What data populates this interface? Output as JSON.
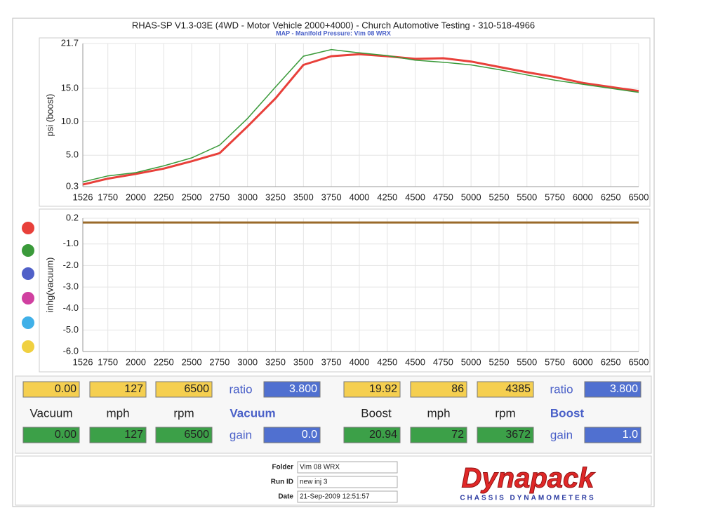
{
  "chart_data": [
    {
      "type": "line",
      "title": "RHAS-SP V1.3-03E  (4WD - Motor Vehicle 2000+4000) - Church Automotive Testing - 310-518-4966",
      "subtitle": "MAP - Manifold Pressure: Vim 08 WRX",
      "y_label": "psi (boost)",
      "x": [
        1526,
        1750,
        2000,
        2250,
        2500,
        2750,
        3000,
        3250,
        3500,
        3750,
        4000,
        4250,
        4500,
        4750,
        5000,
        5250,
        5500,
        5750,
        6000,
        6250,
        6500
      ],
      "series": [
        {
          "color": "#e8403a",
          "values": [
            0.6,
            1.5,
            2.2,
            3.0,
            4.1,
            5.3,
            9.3,
            13.5,
            18.5,
            19.8,
            20.1,
            19.8,
            19.4,
            19.5,
            19.0,
            18.2,
            17.4,
            16.7,
            15.8,
            15.2,
            14.6
          ]
        },
        {
          "color": "#3a9a3a",
          "values": [
            1.0,
            1.9,
            2.4,
            3.4,
            4.6,
            6.5,
            10.5,
            15.2,
            19.8,
            20.8,
            20.3,
            19.9,
            19.2,
            18.9,
            18.5,
            17.8,
            17.0,
            16.2,
            15.6,
            15.0,
            14.4
          ]
        }
      ],
      "xlim": [
        1526,
        6500
      ],
      "xticks": [
        1526,
        1750,
        2000,
        2250,
        2500,
        2750,
        3000,
        3250,
        3500,
        3750,
        4000,
        4250,
        4500,
        4750,
        5000,
        5250,
        5500,
        5750,
        6000,
        6250,
        6500
      ],
      "ylim": [
        0.3,
        21.7
      ],
      "yticks": [
        0.3,
        {
          "value": 5,
          "label": "5.0"
        },
        {
          "value": 10,
          "label": "10.0"
        },
        {
          "value": 15,
          "label": "15.0"
        },
        21.7
      ],
      "grid": true
    },
    {
      "type": "line",
      "y_label": "inhg(vacuum)",
      "x": [
        1526,
        6500
      ],
      "series": [
        {
          "color": "#9a6a2a",
          "values": [
            0.0,
            0.0
          ]
        }
      ],
      "xlim": [
        1526,
        6500
      ],
      "xticks": [
        1526,
        1750,
        2000,
        2250,
        2500,
        2750,
        3000,
        3250,
        3500,
        3750,
        4000,
        4250,
        4500,
        4750,
        5000,
        5250,
        5500,
        5750,
        6000,
        6250,
        6500
      ],
      "ylim": [
        -6.0,
        0.2
      ],
      "yticks": [
        0.2,
        {
          "value": -1,
          "label": "-1.0"
        },
        {
          "value": -2,
          "label": "-2.0"
        },
        {
          "value": -3,
          "label": "-3.0"
        },
        {
          "value": -4,
          "label": "-4.0"
        },
        {
          "value": -5,
          "label": "-5.0"
        },
        {
          "value": -6,
          "label": "-6.0"
        }
      ],
      "grid": true
    }
  ],
  "markers": [
    "#e8403a",
    "#3a9a3a",
    "#5060c8",
    "#d040a0",
    "#40b0e8",
    "#f0d040"
  ],
  "readouts": {
    "top": [
      "0.00",
      "127",
      "6500",
      "ratio",
      "3.800",
      "19.92",
      "86",
      "4385",
      "ratio",
      "3.800"
    ],
    "labels": [
      "Vacuum",
      "mph",
      "rpm",
      "Vacuum",
      "Boost",
      "mph",
      "rpm",
      "Boost"
    ],
    "bottom": [
      "0.00",
      "127",
      "6500",
      "gain",
      "0.0",
      "20.94",
      "72",
      "3672",
      "gain",
      "1.0"
    ]
  },
  "footer": {
    "folder_label": "Folder",
    "folder": "Vim 08 WRX",
    "run_label": "Run ID",
    "run": "new inj 3",
    "date_label": "Date",
    "date": "21-Sep-2009  12:51:57",
    "logo": "Dynapack",
    "logo_sub": "CHASSIS DYNAMOMETERS"
  }
}
